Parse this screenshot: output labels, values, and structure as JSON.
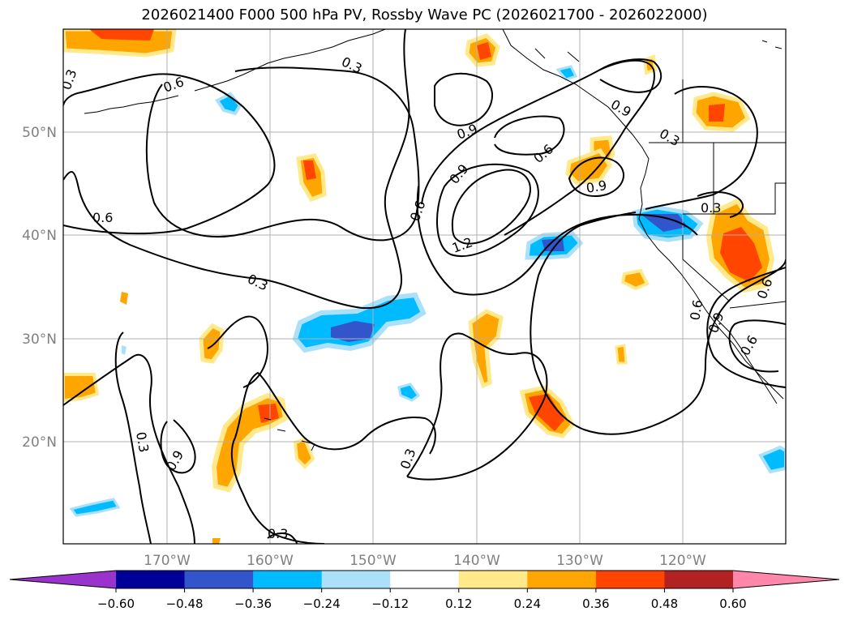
{
  "title": "2026021400 F000 500 hPa PV, Rossby Wave PC (2026021700 - 2026022000)",
  "map": {
    "lat_labels": [
      "50°N",
      "40°N",
      "30°N",
      "20°N"
    ],
    "lon_labels": [
      "170°W",
      "160°W",
      "150°W",
      "140°W",
      "130°W",
      "120°W"
    ],
    "contour_labels": [
      "0.3",
      "0.6",
      "0.3",
      "0.6",
      "0.6",
      "0.9",
      "0.9",
      "0.6",
      "0.9",
      "1.2",
      "0.3",
      "0.3",
      "0.3",
      "0.3",
      "0.6",
      "0.9",
      "0.9",
      "0.6",
      "0.3",
      "0.3",
      "0.9",
      "0.6"
    ],
    "colors": {
      "land_outline": "#000000",
      "grid": "#b0b0b0",
      "axis_label": "#808080"
    }
  },
  "colorbar": {
    "tick_labels": [
      "−0.60",
      "−0.48",
      "−0.36",
      "−0.24",
      "−0.12",
      "0.12",
      "0.24",
      "0.36",
      "0.48",
      "0.60"
    ],
    "bins": [
      {
        "lo": "-inf",
        "hi": "-0.60",
        "color": "#9933cc"
      },
      {
        "lo": "-0.60",
        "hi": "-0.48",
        "color": "#000099"
      },
      {
        "lo": "-0.48",
        "hi": "-0.36",
        "color": "#3355cc"
      },
      {
        "lo": "-0.36",
        "hi": "-0.24",
        "color": "#00bbff"
      },
      {
        "lo": "-0.24",
        "hi": "-0.12",
        "color": "#aae0fa"
      },
      {
        "lo": "-0.12",
        "hi": "0.12",
        "color": "#ffffff"
      },
      {
        "lo": "0.12",
        "hi": "0.24",
        "color": "#ffe98a"
      },
      {
        "lo": "0.24",
        "hi": "0.36",
        "color": "#ffa500"
      },
      {
        "lo": "0.36",
        "hi": "0.48",
        "color": "#ff4500"
      },
      {
        "lo": "0.48",
        "hi": "0.60",
        "color": "#b22222"
      },
      {
        "lo": "0.60",
        "hi": "inf",
        "color": "#ff88aa"
      }
    ]
  }
}
